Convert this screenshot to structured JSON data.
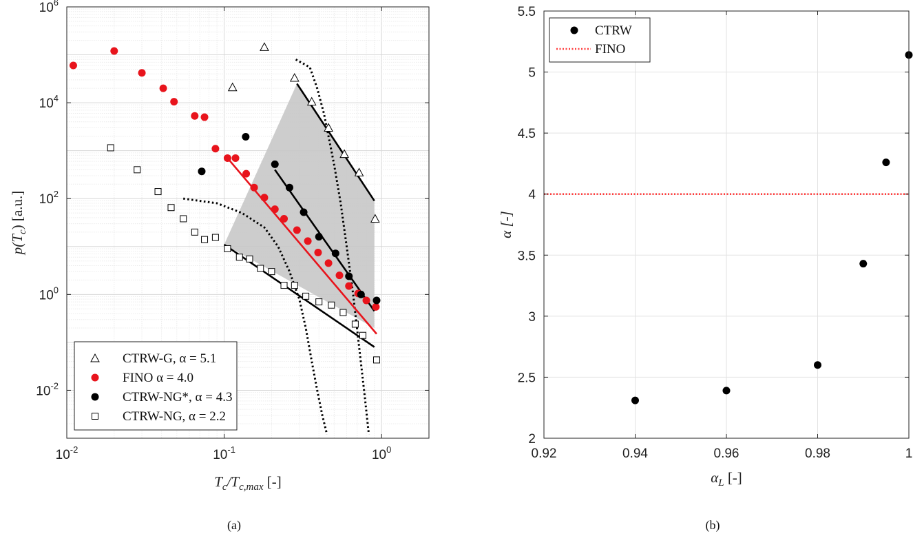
{
  "chart_data": [
    {
      "panel_label": "(a)",
      "type": "scatter",
      "x_scale": "log",
      "y_scale": "log",
      "xlim": [
        0.01,
        2
      ],
      "ylim": [
        0.001,
        1000000
      ],
      "xlabel_main": "T",
      "xlabel_sub1": "c",
      "xlabel_mid": "/T",
      "xlabel_sub2": "c,max",
      "xlabel_unit": " [-]",
      "ylabel_main": "p(T",
      "ylabel_sub": "c",
      "ylabel_unit": ") [a.u.]",
      "x_tick_base": "10",
      "x_tick_exps": [
        "-2",
        "-1",
        "0"
      ],
      "x_tick_values": [
        0.01,
        0.1,
        1
      ],
      "y_tick_base": "10",
      "y_tick_exps": [
        "-2",
        "0",
        "2",
        "4",
        "6"
      ],
      "y_tick_values": [
        0.01,
        1,
        100,
        10000,
        1000000
      ],
      "grid": true,
      "legend_position": "bottom-left",
      "series": [
        {
          "name": "CTRW-G, α = 5.1",
          "marker": "triangle",
          "color": "#000000",
          "points": [
            [
              0.113,
              21000
            ],
            [
              0.18,
              145000
            ],
            [
              0.28,
              33000
            ],
            [
              0.36,
              10500
            ],
            [
              0.46,
              3000
            ],
            [
              0.58,
              850
            ],
            [
              0.72,
              350
            ],
            [
              0.91,
              38
            ]
          ]
        },
        {
          "name": "FINO α = 4.0",
          "marker": "filled-circle",
          "color": "#e8141c",
          "points": [
            [
              0.011,
              60000
            ],
            [
              0.02,
              120000
            ],
            [
              0.03,
              42000
            ],
            [
              0.041,
              20000
            ],
            [
              0.048,
              10500
            ],
            [
              0.065,
              5300
            ],
            [
              0.075,
              5000
            ],
            [
              0.088,
              1100
            ],
            [
              0.105,
              700
            ],
            [
              0.118,
              700
            ],
            [
              0.138,
              330
            ],
            [
              0.155,
              170
            ],
            [
              0.18,
              105
            ],
            [
              0.21,
              60
            ],
            [
              0.24,
              38
            ],
            [
              0.29,
              22
            ],
            [
              0.34,
              13
            ],
            [
              0.395,
              7.5
            ],
            [
              0.46,
              4.5
            ],
            [
              0.54,
              2.5
            ],
            [
              0.62,
              1.5
            ],
            [
              0.71,
              1.05
            ],
            [
              0.8,
              0.75
            ],
            [
              0.92,
              0.55
            ]
          ]
        },
        {
          "name": "CTRW-NG*, α = 4.3",
          "marker": "filled-circle",
          "color": "#000000",
          "points": [
            [
              0.072,
              370
            ],
            [
              0.137,
              1950
            ],
            [
              0.21,
              520
            ],
            [
              0.26,
              170
            ],
            [
              0.32,
              52
            ],
            [
              0.4,
              16
            ],
            [
              0.51,
              7.2
            ],
            [
              0.62,
              2.4
            ],
            [
              0.74,
              1.0
            ],
            [
              0.93,
              0.75
            ]
          ]
        },
        {
          "name": "CTRW-NG, α = 2.2",
          "marker": "square",
          "color": "#000000",
          "points": [
            [
              0.019,
              1150
            ],
            [
              0.028,
              400
            ],
            [
              0.038,
              140
            ],
            [
              0.046,
              65
            ],
            [
              0.055,
              38
            ],
            [
              0.065,
              20
            ],
            [
              0.075,
              14
            ],
            [
              0.088,
              15.5
            ],
            [
              0.105,
              9
            ],
            [
              0.125,
              6
            ],
            [
              0.145,
              5.5
            ],
            [
              0.17,
              3.5
            ],
            [
              0.2,
              3
            ],
            [
              0.24,
              1.55
            ],
            [
              0.28,
              1.55
            ],
            [
              0.33,
              0.92
            ],
            [
              0.4,
              0.7
            ],
            [
              0.48,
              0.6
            ],
            [
              0.57,
              0.42
            ],
            [
              0.68,
              0.24
            ],
            [
              0.76,
              0.14
            ],
            [
              0.93,
              0.043
            ]
          ]
        }
      ],
      "fit_lines": [
        {
          "color": "#000000",
          "from": [
            0.29,
            25000
          ],
          "to": [
            0.9,
            90
          ]
        },
        {
          "color": "#e8141c",
          "from": [
            0.105,
            700
          ],
          "to": [
            0.93,
            0.15
          ]
        },
        {
          "color": "#000000",
          "from": [
            0.21,
            400
          ],
          "to": [
            0.9,
            0.45
          ]
        },
        {
          "color": "#000000",
          "from": [
            0.1,
            11
          ],
          "to": [
            0.9,
            0.08
          ]
        }
      ],
      "dotted_curves": [
        [
          [
            0.055,
            100
          ],
          [
            0.09,
            80
          ],
          [
            0.13,
            50
          ],
          [
            0.18,
            25
          ],
          [
            0.22,
            10
          ],
          [
            0.26,
            3
          ],
          [
            0.3,
            0.8
          ],
          [
            0.33,
            0.2
          ],
          [
            0.36,
            0.04
          ],
          [
            0.39,
            0.01
          ],
          [
            0.42,
            0.003
          ],
          [
            0.45,
            0.0012
          ]
        ],
        [
          [
            0.285,
            80000
          ],
          [
            0.35,
            55000
          ],
          [
            0.39,
            20000
          ],
          [
            0.43,
            6000
          ],
          [
            0.46,
            2000
          ],
          [
            0.5,
            500
          ],
          [
            0.55,
            80
          ],
          [
            0.6,
            10
          ],
          [
            0.66,
            1
          ],
          [
            0.72,
            0.08
          ],
          [
            0.78,
            0.008
          ],
          [
            0.83,
            0.0012
          ]
        ]
      ],
      "shaded_region": [
        [
          0.1,
          11
        ],
        [
          0.29,
          25000
        ],
        [
          0.9,
          90
        ],
        [
          0.9,
          0.2
        ]
      ]
    },
    {
      "panel_label": "(b)",
      "type": "scatter",
      "xlim": [
        0.92,
        1.0
      ],
      "ylim": [
        2,
        5.5
      ],
      "xlabel_main": "α",
      "xlabel_sub": "L",
      "xlabel_unit": " [-]",
      "ylabel": "α [-]",
      "x_tick_values": [
        0.92,
        0.94,
        0.96,
        0.98,
        1.0
      ],
      "x_tick_labels": [
        "0.92",
        "0.94",
        "0.96",
        "0.98",
        "1"
      ],
      "y_tick_values": [
        2,
        2.5,
        3,
        3.5,
        4,
        4.5,
        5,
        5.5
      ],
      "y_tick_labels": [
        "2",
        "2.5",
        "3",
        "3.5",
        "4",
        "4.5",
        "5",
        "5.5"
      ],
      "grid": true,
      "legend_position": "top-left",
      "series": [
        {
          "name": "CTRW",
          "marker": "filled-circle",
          "color": "#000000",
          "x": [
            0.94,
            0.96,
            0.98,
            0.99,
            0.995,
            1.0
          ],
          "y": [
            2.31,
            2.39,
            2.6,
            3.43,
            4.26,
            5.14
          ]
        }
      ],
      "reference_line": {
        "name": "FINO",
        "y": 4.0,
        "color": "#ff3b3b",
        "style": "dotted"
      }
    }
  ]
}
